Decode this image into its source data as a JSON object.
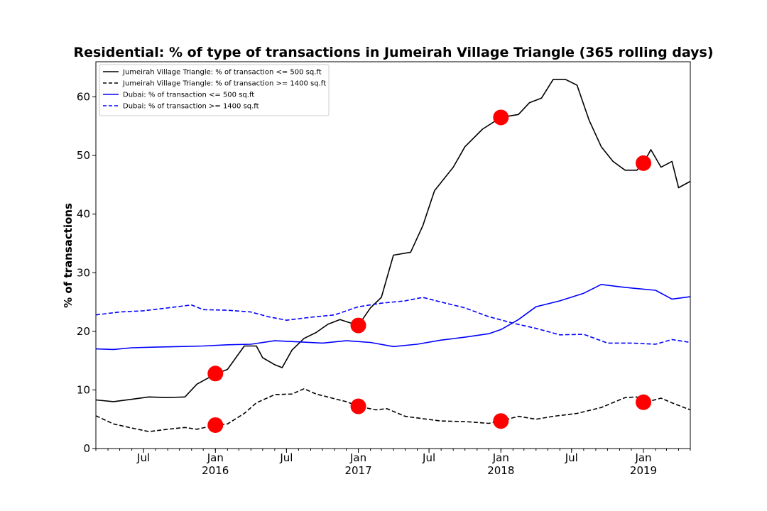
{
  "chart_data": {
    "type": "line",
    "title": "Residential: % of type of transactions in Jumeirah Village Triangle (365 rolling days)",
    "xlabel": "",
    "ylabel": "% of transactions",
    "xlim": [
      "2015-03-01",
      "2019-05-01"
    ],
    "ylim": [
      0,
      66
    ],
    "grid": false,
    "legend_position": "top-left",
    "y_ticks": [
      0,
      10,
      20,
      30,
      40,
      50,
      60
    ],
    "x_ticks": [
      {
        "date": "2015-07-01",
        "label": "Jul",
        "year": ""
      },
      {
        "date": "2016-01-01",
        "label": "Jan",
        "year": "2016"
      },
      {
        "date": "2016-07-01",
        "label": "Jul",
        "year": ""
      },
      {
        "date": "2017-01-01",
        "label": "Jan",
        "year": "2017"
      },
      {
        "date": "2017-07-01",
        "label": "Jul",
        "year": ""
      },
      {
        "date": "2018-01-01",
        "label": "Jan",
        "year": "2018"
      },
      {
        "date": "2018-07-01",
        "label": "Jul",
        "year": ""
      },
      {
        "date": "2019-01-01",
        "label": "Jan",
        "year": "2019"
      }
    ],
    "series": [
      {
        "name": "Jumeirah Village Triangle: % of transaction <= 500 sq.ft",
        "color": "#000000",
        "dash": "solid",
        "points": [
          [
            "2015-03-01",
            8.3
          ],
          [
            "2015-04-15",
            8.0
          ],
          [
            "2015-06-01",
            8.4
          ],
          [
            "2015-07-15",
            8.8
          ],
          [
            "2015-09-01",
            8.7
          ],
          [
            "2015-10-15",
            8.8
          ],
          [
            "2015-11-15",
            11.0
          ],
          [
            "2016-01-01",
            12.7
          ],
          [
            "2016-02-01",
            13.5
          ],
          [
            "2016-03-15",
            17.5
          ],
          [
            "2016-04-15",
            17.5
          ],
          [
            "2016-05-01",
            15.5
          ],
          [
            "2016-06-01",
            14.3
          ],
          [
            "2016-06-20",
            13.8
          ],
          [
            "2016-07-15",
            16.8
          ],
          [
            "2016-08-15",
            18.8
          ],
          [
            "2016-09-15",
            19.8
          ],
          [
            "2016-10-15",
            21.2
          ],
          [
            "2016-11-15",
            22.0
          ],
          [
            "2017-01-01",
            21.0
          ],
          [
            "2017-02-01",
            24.0
          ],
          [
            "2017-03-01",
            25.8
          ],
          [
            "2017-04-01",
            33.0
          ],
          [
            "2017-05-15",
            33.5
          ],
          [
            "2017-06-15",
            38.0
          ],
          [
            "2017-07-15",
            44.0
          ],
          [
            "2017-09-01",
            48.0
          ],
          [
            "2017-10-01",
            51.5
          ],
          [
            "2017-11-15",
            54.5
          ],
          [
            "2018-01-01",
            56.5
          ],
          [
            "2018-02-15",
            57.0
          ],
          [
            "2018-03-15",
            59.0
          ],
          [
            "2018-04-15",
            59.8
          ],
          [
            "2018-05-15",
            63.0
          ],
          [
            "2018-06-15",
            63.0
          ],
          [
            "2018-07-15",
            62.0
          ],
          [
            "2018-08-15",
            56.0
          ],
          [
            "2018-09-15",
            51.5
          ],
          [
            "2018-10-15",
            49.0
          ],
          [
            "2018-11-15",
            47.5
          ],
          [
            "2018-12-15",
            47.5
          ],
          [
            "2019-01-01",
            48.7
          ],
          [
            "2019-01-20",
            51.0
          ],
          [
            "2019-02-15",
            48.0
          ],
          [
            "2019-03-15",
            49.0
          ],
          [
            "2019-04-01",
            44.5
          ],
          [
            "2019-05-01",
            45.6
          ]
        ]
      },
      {
        "name": "Jumeirah Village Triangle: % of transaction >= 1400 sq.ft",
        "color": "#000000",
        "dash": "dashed",
        "points": [
          [
            "2015-03-01",
            5.6
          ],
          [
            "2015-04-15",
            4.2
          ],
          [
            "2015-06-01",
            3.5
          ],
          [
            "2015-07-15",
            2.9
          ],
          [
            "2015-09-01",
            3.3
          ],
          [
            "2015-10-15",
            3.6
          ],
          [
            "2015-11-15",
            3.3
          ],
          [
            "2016-01-01",
            4.0
          ],
          [
            "2016-02-01",
            4.2
          ],
          [
            "2016-03-15",
            6.0
          ],
          [
            "2016-04-15",
            7.8
          ],
          [
            "2016-06-01",
            9.2
          ],
          [
            "2016-07-15",
            9.3
          ],
          [
            "2016-08-15",
            10.2
          ],
          [
            "2016-09-15",
            9.3
          ],
          [
            "2016-11-01",
            8.5
          ],
          [
            "2016-12-01",
            8.0
          ],
          [
            "2017-01-01",
            7.2
          ],
          [
            "2017-02-15",
            6.6
          ],
          [
            "2017-03-15",
            6.8
          ],
          [
            "2017-05-01",
            5.5
          ],
          [
            "2017-06-15",
            5.1
          ],
          [
            "2017-08-01",
            4.7
          ],
          [
            "2017-10-01",
            4.6
          ],
          [
            "2017-12-01",
            4.3
          ],
          [
            "2018-01-01",
            4.7
          ],
          [
            "2018-02-15",
            5.5
          ],
          [
            "2018-04-01",
            5.0
          ],
          [
            "2018-05-15",
            5.5
          ],
          [
            "2018-07-15",
            6.0
          ],
          [
            "2018-09-15",
            7.0
          ],
          [
            "2018-11-15",
            8.7
          ],
          [
            "2018-12-15",
            8.8
          ],
          [
            "2019-01-01",
            7.8
          ],
          [
            "2019-02-15",
            8.6
          ],
          [
            "2019-03-15",
            7.8
          ],
          [
            "2019-05-01",
            6.6
          ]
        ]
      },
      {
        "name": "Dubai: % of transaction <= 500 sq.ft",
        "color": "#0000ff",
        "dash": "solid",
        "points": [
          [
            "2015-03-01",
            17.0
          ],
          [
            "2015-04-15",
            16.9
          ],
          [
            "2015-06-01",
            17.2
          ],
          [
            "2015-08-01",
            17.3
          ],
          [
            "2015-10-01",
            17.4
          ],
          [
            "2015-12-01",
            17.5
          ],
          [
            "2016-02-01",
            17.7
          ],
          [
            "2016-04-01",
            17.8
          ],
          [
            "2016-06-01",
            18.4
          ],
          [
            "2016-08-01",
            18.2
          ],
          [
            "2016-10-01",
            18.0
          ],
          [
            "2016-12-01",
            18.4
          ],
          [
            "2017-02-01",
            18.1
          ],
          [
            "2017-04-01",
            17.4
          ],
          [
            "2017-06-01",
            17.8
          ],
          [
            "2017-08-01",
            18.5
          ],
          [
            "2017-10-01",
            19.0
          ],
          [
            "2017-12-01",
            19.6
          ],
          [
            "2018-01-01",
            20.3
          ],
          [
            "2018-02-15",
            22.0
          ],
          [
            "2018-04-01",
            24.2
          ],
          [
            "2018-06-01",
            25.2
          ],
          [
            "2018-08-01",
            26.5
          ],
          [
            "2018-09-15",
            28.0
          ],
          [
            "2018-11-01",
            27.6
          ],
          [
            "2018-12-15",
            27.3
          ],
          [
            "2019-02-01",
            27.0
          ],
          [
            "2019-03-15",
            25.5
          ],
          [
            "2019-05-01",
            25.9
          ]
        ]
      },
      {
        "name": "Dubai: % of transaction >= 1400 sq.ft",
        "color": "#0000ff",
        "dash": "dashed",
        "points": [
          [
            "2015-03-01",
            22.8
          ],
          [
            "2015-05-01",
            23.3
          ],
          [
            "2015-07-01",
            23.5
          ],
          [
            "2015-09-01",
            24.0
          ],
          [
            "2015-11-01",
            24.5
          ],
          [
            "2015-12-01",
            23.7
          ],
          [
            "2016-02-01",
            23.6
          ],
          [
            "2016-04-01",
            23.3
          ],
          [
            "2016-05-15",
            22.5
          ],
          [
            "2016-07-01",
            21.9
          ],
          [
            "2016-09-01",
            22.4
          ],
          [
            "2016-11-01",
            22.8
          ],
          [
            "2017-01-01",
            24.2
          ],
          [
            "2017-03-01",
            24.8
          ],
          [
            "2017-05-01",
            25.2
          ],
          [
            "2017-06-15",
            25.8
          ],
          [
            "2017-08-01",
            25.0
          ],
          [
            "2017-10-01",
            24.0
          ],
          [
            "2017-12-01",
            22.5
          ],
          [
            "2018-02-01",
            21.4
          ],
          [
            "2018-04-01",
            20.5
          ],
          [
            "2018-06-01",
            19.4
          ],
          [
            "2018-08-01",
            19.5
          ],
          [
            "2018-10-01",
            18.0
          ],
          [
            "2018-12-01",
            18.0
          ],
          [
            "2019-02-01",
            17.8
          ],
          [
            "2019-03-15",
            18.6
          ],
          [
            "2019-05-01",
            18.1
          ]
        ]
      }
    ],
    "markers": [
      {
        "date": "2016-01-01",
        "value": 12.8,
        "color": "#ff0000"
      },
      {
        "date": "2016-01-01",
        "value": 4.0,
        "color": "#ff0000"
      },
      {
        "date": "2017-01-01",
        "value": 21.0,
        "color": "#ff0000"
      },
      {
        "date": "2017-01-01",
        "value": 7.2,
        "color": "#ff0000"
      },
      {
        "date": "2018-01-01",
        "value": 56.5,
        "color": "#ff0000"
      },
      {
        "date": "2018-01-01",
        "value": 4.7,
        "color": "#ff0000"
      },
      {
        "date": "2019-01-01",
        "value": 48.7,
        "color": "#ff0000"
      },
      {
        "date": "2019-01-01",
        "value": 7.9,
        "color": "#ff0000"
      }
    ]
  }
}
